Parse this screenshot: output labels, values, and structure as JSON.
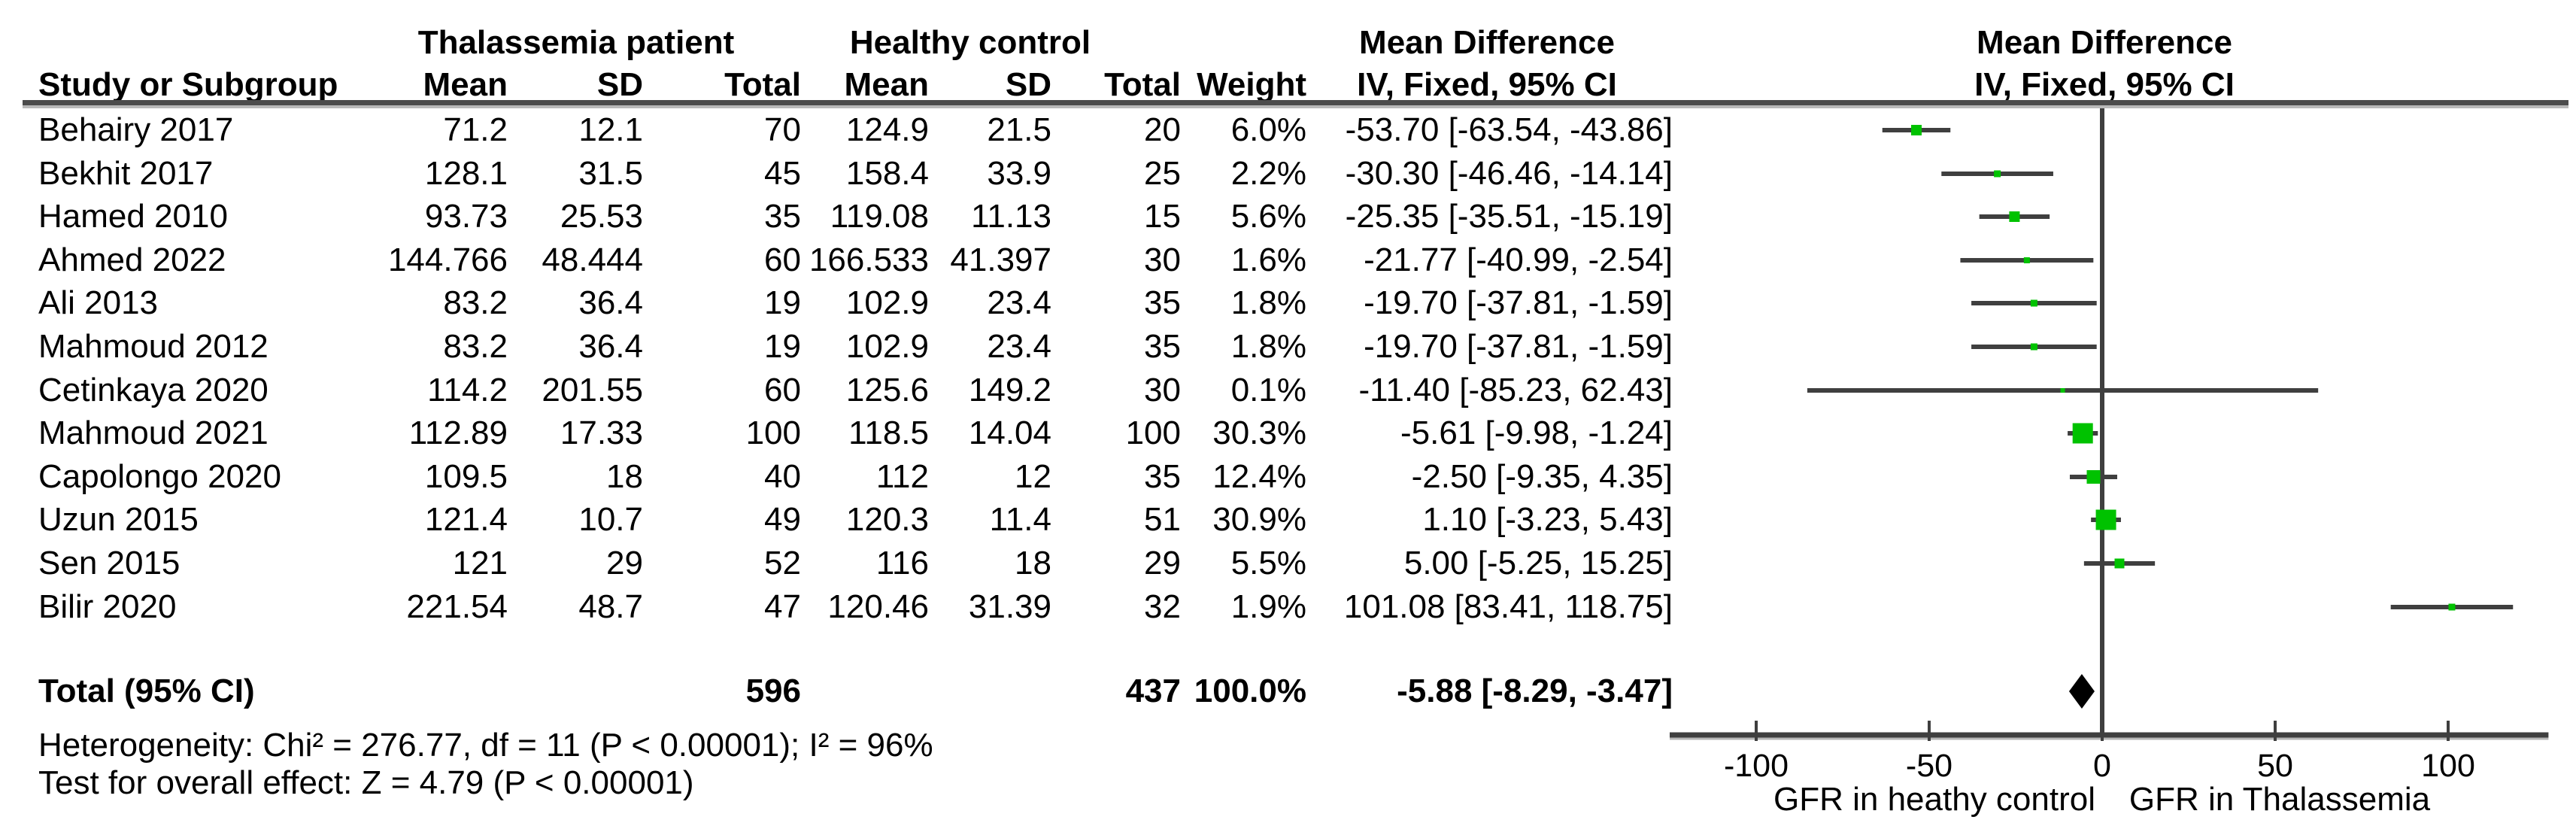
{
  "headers": {
    "group1": "Thalassemia patient",
    "group2": "Healthy control",
    "md_text": "Mean Difference",
    "md_plot": "Mean Difference",
    "col_study": "Study or Subgroup",
    "col_mean1": "Mean",
    "col_sd1": "SD",
    "col_total1": "Total",
    "col_mean2": "Mean",
    "col_sd2": "SD",
    "col_total2": "Total",
    "col_weight": "Weight",
    "col_ci_text": "IV, Fixed, 95% CI",
    "col_ci_plot": "IV, Fixed, 95% CI"
  },
  "footer": {
    "heterogeneity": "Heterogeneity: Chi² = 276.77, df = 11 (P < 0.00001); I² = 96%",
    "overall_effect": "Test for overall effect: Z = 4.79 (P < 0.00001)"
  },
  "chart_data": {
    "type": "forest",
    "effect_measure": "Mean Difference",
    "model": "IV, Fixed, 95% CI",
    "studies": [
      {
        "study": "Behairy 2017",
        "mean1": "71.2",
        "sd1": "12.1",
        "total1": "70",
        "mean2": "124.9",
        "sd2": "21.5",
        "total2": "20",
        "weight": "6.0%",
        "ci_text": "-53.70 [-63.54, -43.86]",
        "md": -53.7,
        "lo": -63.54,
        "hi": -43.86,
        "marker_px": 14
      },
      {
        "study": "Bekhit 2017",
        "mean1": "128.1",
        "sd1": "31.5",
        "total1": "45",
        "mean2": "158.4",
        "sd2": "33.9",
        "total2": "25",
        "weight": "2.2%",
        "ci_text": "-30.30 [-46.46, -14.14]",
        "md": -30.3,
        "lo": -46.46,
        "hi": -14.14,
        "marker_px": 9
      },
      {
        "study": "Hamed 2010",
        "mean1": "93.73",
        "sd1": "25.53",
        "total1": "35",
        "mean2": "119.08",
        "sd2": "11.13",
        "total2": "15",
        "weight": "5.6%",
        "ci_text": "-25.35 [-35.51, -15.19]",
        "md": -25.35,
        "lo": -35.51,
        "hi": -15.19,
        "marker_px": 14
      },
      {
        "study": "Ahmed 2022",
        "mean1": "144.766",
        "sd1": "48.444",
        "total1": "60",
        "mean2": "166.533",
        "sd2": "41.397",
        "total2": "30",
        "weight": "1.6%",
        "ci_text": "-21.77 [-40.99, -2.54]",
        "md": -21.77,
        "lo": -40.99,
        "hi": -2.54,
        "marker_px": 8
      },
      {
        "study": "Ali 2013",
        "mean1": "83.2",
        "sd1": "36.4",
        "total1": "19",
        "mean2": "102.9",
        "sd2": "23.4",
        "total2": "35",
        "weight": "1.8%",
        "ci_text": "-19.70 [-37.81, -1.59]",
        "md": -19.7,
        "lo": -37.81,
        "hi": -1.59,
        "marker_px": 9
      },
      {
        "study": "Mahmoud 2012",
        "mean1": "83.2",
        "sd1": "36.4",
        "total1": "19",
        "mean2": "102.9",
        "sd2": "23.4",
        "total2": "35",
        "weight": "1.8%",
        "ci_text": "-19.70 [-37.81, -1.59]",
        "md": -19.7,
        "lo": -37.81,
        "hi": -1.59,
        "marker_px": 9
      },
      {
        "study": "Cetinkaya 2020",
        "mean1": "114.2",
        "sd1": "201.55",
        "total1": "60",
        "mean2": "125.6",
        "sd2": "149.2",
        "total2": "30",
        "weight": "0.1%",
        "ci_text": "-11.40 [-85.23, 62.43]",
        "md": -11.4,
        "lo": -85.23,
        "hi": 62.43,
        "marker_px": 6
      },
      {
        "study": "Mahmoud 2021",
        "mean1": "112.89",
        "sd1": "17.33",
        "total1": "100",
        "mean2": "118.5",
        "sd2": "14.04",
        "total2": "100",
        "weight": "30.3%",
        "ci_text": "-5.61 [-9.98, -1.24]",
        "md": -5.61,
        "lo": -9.98,
        "hi": -1.24,
        "marker_px": 27
      },
      {
        "study": "Capolongo 2020",
        "mean1": "109.5",
        "sd1": "18",
        "total1": "40",
        "mean2": "112",
        "sd2": "12",
        "total2": "35",
        "weight": "12.4%",
        "ci_text": "-2.50 [-9.35, 4.35]",
        "md": -2.5,
        "lo": -9.35,
        "hi": 4.35,
        "marker_px": 18
      },
      {
        "study": "Uzun 2015",
        "mean1": "121.4",
        "sd1": "10.7",
        "total1": "49",
        "mean2": "120.3",
        "sd2": "11.4",
        "total2": "51",
        "weight": "30.9%",
        "ci_text": "1.10 [-3.23, 5.43]",
        "md": 1.1,
        "lo": -3.23,
        "hi": 5.43,
        "marker_px": 27
      },
      {
        "study": "Sen 2015",
        "mean1": "121",
        "sd1": "29",
        "total1": "52",
        "mean2": "116",
        "sd2": "18",
        "total2": "29",
        "weight": "5.5%",
        "ci_text": "5.00 [-5.25, 15.25]",
        "md": 5.0,
        "lo": -5.25,
        "hi": 15.25,
        "marker_px": 13
      },
      {
        "study": "Bilir 2020",
        "mean1": "221.54",
        "sd1": "48.7",
        "total1": "47",
        "mean2": "120.46",
        "sd2": "31.39",
        "total2": "32",
        "weight": "1.9%",
        "ci_text": "101.08 [83.41, 118.75]",
        "md": 101.08,
        "lo": 83.41,
        "hi": 118.75,
        "marker_px": 9
      }
    ],
    "total": {
      "label": "Total (95% CI)",
      "total1": "596",
      "total2": "437",
      "weight": "100.0%",
      "ci_text": "-5.88 [-8.29, -3.47]",
      "md": -5.88,
      "lo": -8.29,
      "hi": -3.47
    },
    "x_ticks": [
      -100,
      -50,
      0,
      50,
      100
    ],
    "xlim": [
      -125,
      129
    ],
    "axis_label_left": "GFR in heathy control",
    "axis_label_right": "GFR in Thalassemia",
    "marker_color": "#00c200",
    "line_color": "#3f3f3f",
    "diamond_color": "#000000"
  }
}
